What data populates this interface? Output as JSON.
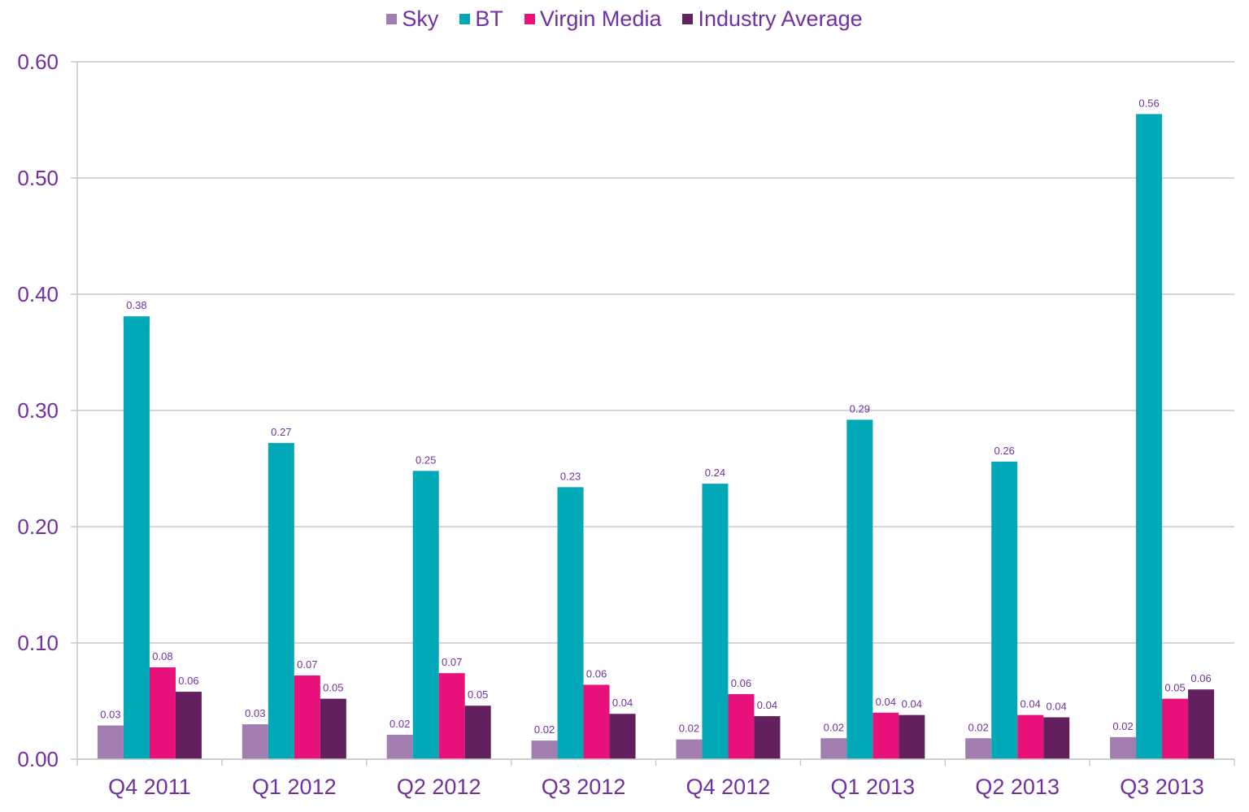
{
  "chart_data": {
    "type": "bar",
    "categories": [
      "Q4 2011",
      "Q1 2012",
      "Q2 2012",
      "Q3 2012",
      "Q4 2012",
      "Q1 2013",
      "Q2 2013",
      "Q3 2013"
    ],
    "series": [
      {
        "name": "Sky",
        "color": "#a17db0",
        "values": [
          0.029,
          0.03,
          0.021,
          0.016,
          0.017,
          0.018,
          0.018,
          0.019
        ],
        "labels": [
          "0.03",
          "0.03",
          "0.02",
          "0.02",
          "0.02",
          "0.02",
          "0.02",
          "0.02"
        ]
      },
      {
        "name": "BT",
        "color": "#00a8b8",
        "values": [
          0.381,
          0.272,
          0.248,
          0.234,
          0.237,
          0.292,
          0.256,
          0.555
        ],
        "labels": [
          "0.38",
          "0.27",
          "0.25",
          "0.23",
          "0.24",
          "0.29",
          "0.26",
          "0.56"
        ]
      },
      {
        "name": "Virgin Media",
        "color": "#e8117a",
        "values": [
          0.079,
          0.072,
          0.074,
          0.064,
          0.056,
          0.04,
          0.038,
          0.052
        ],
        "labels": [
          "0.08",
          "0.07",
          "0.07",
          "0.06",
          "0.06",
          "0.04",
          "0.04",
          "0.05"
        ]
      },
      {
        "name": "Industry Average",
        "color": "#62205f",
        "values": [
          0.058,
          0.052,
          0.046,
          0.039,
          0.037,
          0.038,
          0.036,
          0.06
        ],
        "labels": [
          "0.06",
          "0.05",
          "0.05",
          "0.04",
          "0.04",
          "0.04",
          "0.04",
          "0.06"
        ]
      }
    ],
    "yticks": [
      "0.00",
      "0.10",
      "0.20",
      "0.30",
      "0.40",
      "0.50",
      "0.60"
    ],
    "ylim": [
      0,
      0.6
    ],
    "grid": true,
    "legend_position": "top",
    "text_color": "#7030a0",
    "grid_color": "#c8c8c8"
  }
}
